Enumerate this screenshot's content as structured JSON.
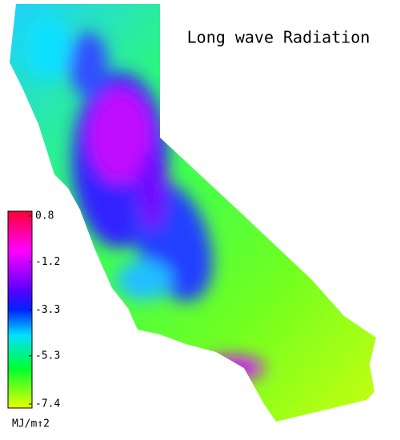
{
  "map": {
    "title": "Long wave Radiation"
  },
  "colorbar": {
    "label": "MJ/m↑2",
    "lim": [
      -7.4,
      0.8
    ],
    "ticks": [
      0.8,
      -1.2,
      -3.3,
      -5.3,
      -7.4
    ]
  }
}
